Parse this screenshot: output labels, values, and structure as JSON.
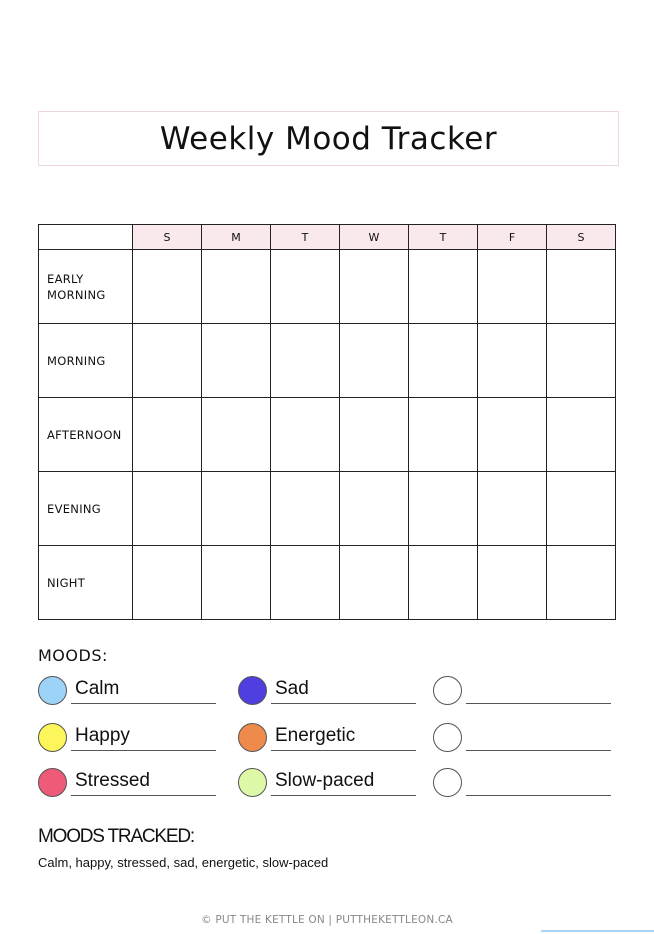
{
  "title": "Weekly Mood Tracker",
  "tracker": {
    "days": [
      "S",
      "M",
      "T",
      "W",
      "T",
      "F",
      "S"
    ],
    "rows": [
      "EARLY\nMORNING",
      "MORNING",
      "AFTERNOON",
      "EVENING",
      "NIGHT"
    ]
  },
  "moods": {
    "label": "MOODS:",
    "items": [
      {
        "name": "Calm",
        "color": "#9dd3f7"
      },
      {
        "name": "Sad",
        "color": "#4f3ee0"
      },
      {
        "name": "",
        "color": "#ffffff"
      },
      {
        "name": "Happy",
        "color": "#fdf65a"
      },
      {
        "name": "Energetic",
        "color": "#ef8a4d"
      },
      {
        "name": "",
        "color": "#ffffff"
      },
      {
        "name": "Stressed",
        "color": "#ee5b78"
      },
      {
        "name": "Slow-paced",
        "color": "#ddf8a6"
      },
      {
        "name": "",
        "color": "#ffffff"
      }
    ]
  },
  "tracked": {
    "label": "MOODS TRACKED:",
    "text": "Calm, happy, stressed, sad, energetic, slow-paced"
  },
  "footer": "© PUT THE KETTLE ON | PUTTHEKETTLEON.CA"
}
